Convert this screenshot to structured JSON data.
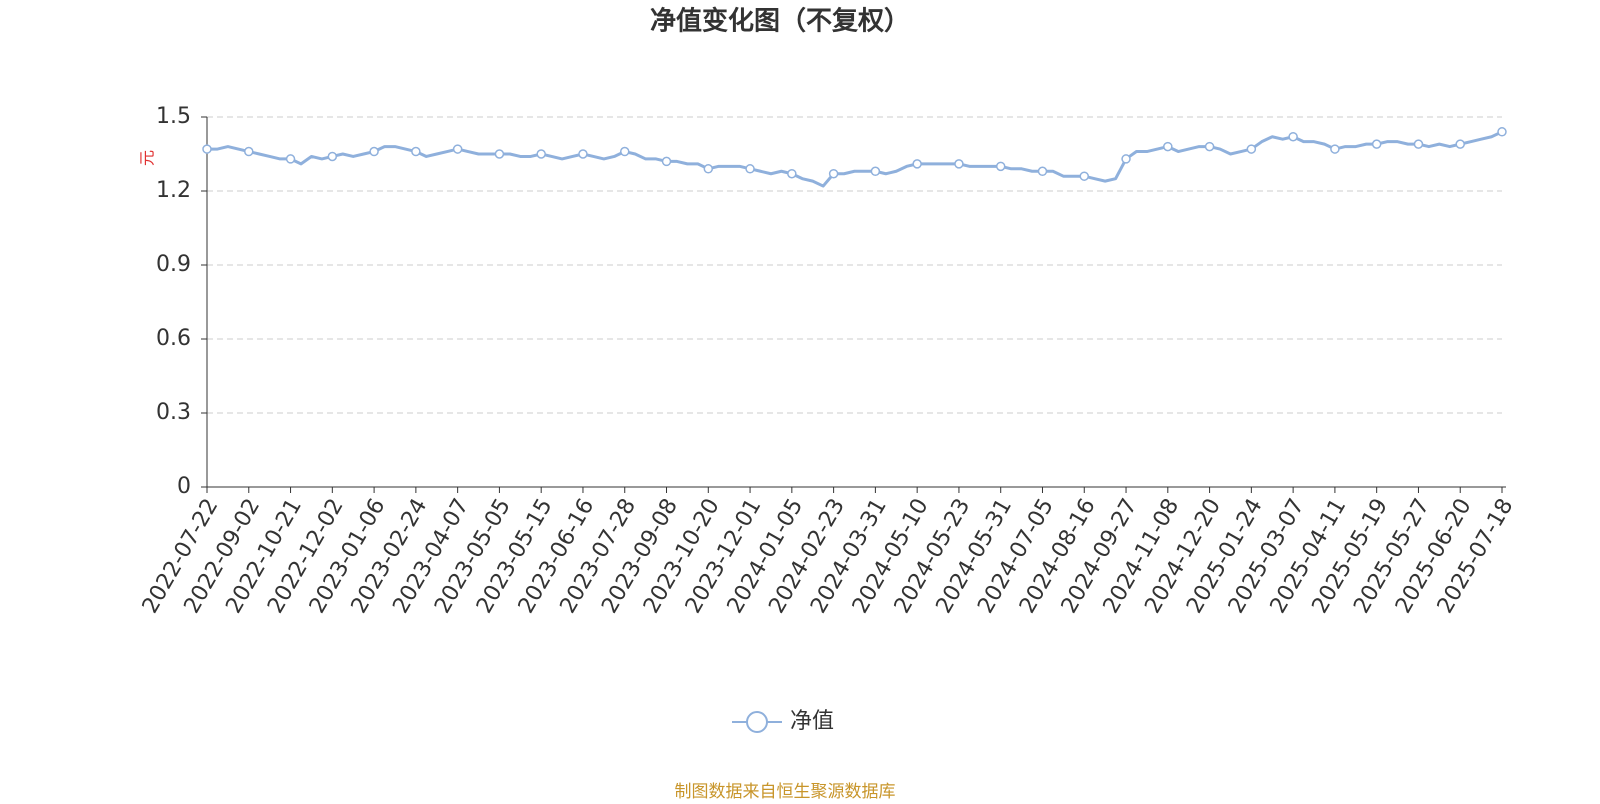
{
  "chart_data": {
    "type": "line",
    "title": "净值变化图（不复权）",
    "y_label": "元",
    "source": "制图数据来自恒生聚源数据库",
    "categories": [
      "2022-07-22",
      null,
      null,
      null,
      "2022-09-02",
      null,
      null,
      null,
      "2022-10-21",
      null,
      null,
      null,
      "2022-12-02",
      null,
      null,
      null,
      "2023-01-06",
      null,
      null,
      null,
      "2023-02-24",
      null,
      null,
      null,
      "2023-04-07",
      null,
      null,
      null,
      "2023-05-05",
      null,
      null,
      null,
      "2023-05-15",
      null,
      null,
      null,
      "2023-06-16",
      null,
      null,
      null,
      "2023-07-28",
      null,
      null,
      null,
      "2023-09-08",
      null,
      null,
      null,
      "2023-10-20",
      null,
      null,
      null,
      "2023-12-01",
      null,
      null,
      null,
      "2024-01-05",
      null,
      null,
      null,
      "2024-02-23",
      null,
      null,
      null,
      "2024-03-31",
      null,
      null,
      null,
      "2024-05-10",
      null,
      null,
      null,
      "2024-05-23",
      null,
      null,
      null,
      "2024-05-31",
      null,
      null,
      null,
      "2024-07-05",
      null,
      null,
      null,
      "2024-08-16",
      null,
      null,
      null,
      "2024-09-27",
      null,
      null,
      null,
      "2024-11-08",
      null,
      null,
      null,
      "2024-12-20",
      null,
      null,
      null,
      "2025-01-24",
      null,
      null,
      null,
      "2025-03-07",
      null,
      null,
      null,
      "2025-04-11",
      null,
      null,
      null,
      "2025-05-19",
      null,
      null,
      null,
      "2025-05-27",
      null,
      null,
      null,
      "2025-06-20",
      null,
      null,
      null,
      "2025-07-18"
    ],
    "series": [
      {
        "name": "净值",
        "color": "#8fb0dc",
        "values": [
          1.37,
          1.37,
          1.38,
          1.37,
          1.36,
          1.35,
          1.34,
          1.33,
          1.33,
          1.31,
          1.34,
          1.33,
          1.34,
          1.35,
          1.34,
          1.35,
          1.36,
          1.38,
          1.38,
          1.37,
          1.36,
          1.34,
          1.35,
          1.36,
          1.37,
          1.36,
          1.35,
          1.35,
          1.35,
          1.35,
          1.34,
          1.34,
          1.35,
          1.34,
          1.33,
          1.34,
          1.35,
          1.34,
          1.33,
          1.34,
          1.36,
          1.35,
          1.33,
          1.33,
          1.32,
          1.32,
          1.31,
          1.31,
          1.29,
          1.3,
          1.3,
          1.3,
          1.29,
          1.28,
          1.27,
          1.28,
          1.27,
          1.25,
          1.24,
          1.22,
          1.27,
          1.27,
          1.28,
          1.28,
          1.28,
          1.27,
          1.28,
          1.3,
          1.31,
          1.31,
          1.31,
          1.31,
          1.31,
          1.3,
          1.3,
          1.3,
          1.3,
          1.29,
          1.29,
          1.28,
          1.28,
          1.28,
          1.26,
          1.26,
          1.26,
          1.25,
          1.24,
          1.25,
          1.33,
          1.36,
          1.36,
          1.37,
          1.38,
          1.36,
          1.37,
          1.38,
          1.38,
          1.37,
          1.35,
          1.36,
          1.37,
          1.4,
          1.42,
          1.41,
          1.42,
          1.4,
          1.4,
          1.39,
          1.37,
          1.38,
          1.38,
          1.39,
          1.39,
          1.4,
          1.4,
          1.39,
          1.39,
          1.38,
          1.39,
          1.38,
          1.39,
          1.4,
          1.41,
          1.42,
          1.44
        ]
      }
    ],
    "ylim": [
      0,
      1.5
    ],
    "yticks": [
      0,
      0.3,
      0.6,
      0.9,
      1.2,
      1.5
    ],
    "grid": true,
    "legend": "bottom"
  }
}
